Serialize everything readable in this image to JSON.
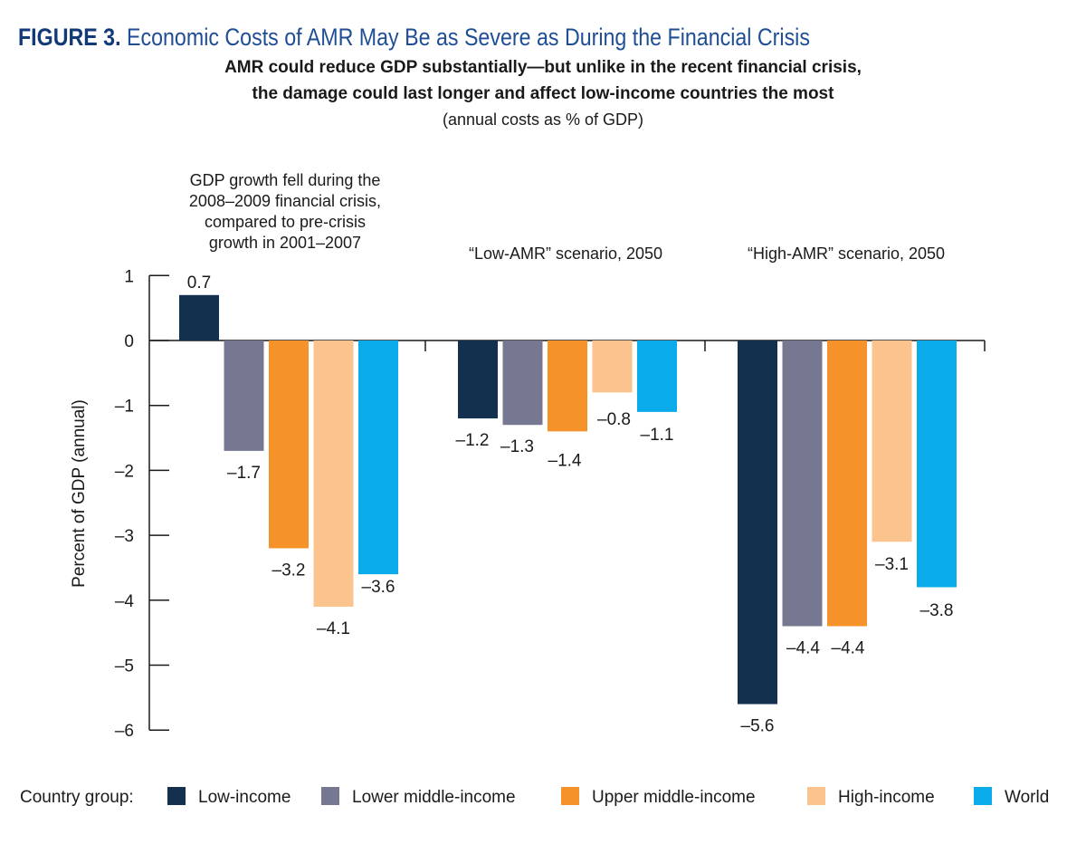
{
  "figure": {
    "label": "FIGURE 3.",
    "title": "Economic Costs of AMR May Be as Severe as During the Financial Crisis",
    "subtitle_line1": "AMR could reduce GDP substantially—but unlike in the recent financial crisis,",
    "subtitle_line2": "the damage could last longer and affect low-income countries the most",
    "units": "(annual costs as % of GDP)"
  },
  "colors": {
    "low_income": "#14304f",
    "lower_middle": "#767891",
    "upper_middle": "#f5922a",
    "high_income": "#fbc38e",
    "world": "#0aabea",
    "title_label": "#123a78",
    "title_text": "#1f4e95"
  },
  "legend_title": "Country group:",
  "chart_data": {
    "type": "bar",
    "title": "Economic Costs of AMR May Be as Severe as During the Financial Crisis",
    "xlabel": "",
    "ylabel": "Percent of GDP (annual)",
    "ylim": [
      -6,
      1
    ],
    "yticks": [
      1,
      0,
      -1,
      -2,
      -3,
      -4,
      -5,
      -6
    ],
    "ytick_labels": [
      "1",
      "0",
      "–1",
      "–2",
      "–3",
      "–4",
      "–5",
      "–6"
    ],
    "grid": false,
    "legend_position": "bottom",
    "categories": [
      "GDP growth fell during the 2008–2009 financial crisis, compared to pre-crisis growth in 2001–2007",
      "“Low-AMR” scenario, 2050",
      "“High-AMR” scenario, 2050"
    ],
    "category_lines": [
      [
        "GDP growth fell during the",
        "2008–2009 financial crisis,",
        "compared to pre-crisis",
        "growth in 2001–2007"
      ],
      [
        "“Low-AMR” scenario, 2050"
      ],
      [
        "“High-AMR” scenario, 2050"
      ]
    ],
    "series": [
      {
        "name": "Low-income",
        "color_key": "low_income",
        "values": [
          0.7,
          -1.2,
          -5.6
        ],
        "labels": [
          "0.7",
          "–1.2",
          "–5.6"
        ]
      },
      {
        "name": "Lower middle-income",
        "color_key": "lower_middle",
        "values": [
          -1.7,
          -1.3,
          -4.4
        ],
        "labels": [
          "–1.7",
          "–1.3",
          "–4.4"
        ]
      },
      {
        "name": "Upper middle-income",
        "color_key": "upper_middle",
        "values": [
          -3.2,
          -1.4,
          -4.4
        ],
        "labels": [
          "–3.2",
          "–1.4",
          "–4.4"
        ]
      },
      {
        "name": "High-income",
        "color_key": "high_income",
        "values": [
          -4.1,
          -0.8,
          -3.1
        ],
        "labels": [
          "–4.1",
          "–0.8",
          "–3.1"
        ]
      },
      {
        "name": "World",
        "color_key": "world",
        "values": [
          -3.6,
          -1.1,
          -3.8
        ],
        "labels": [
          "–3.6",
          "–1.1",
          "–3.8"
        ]
      }
    ]
  }
}
